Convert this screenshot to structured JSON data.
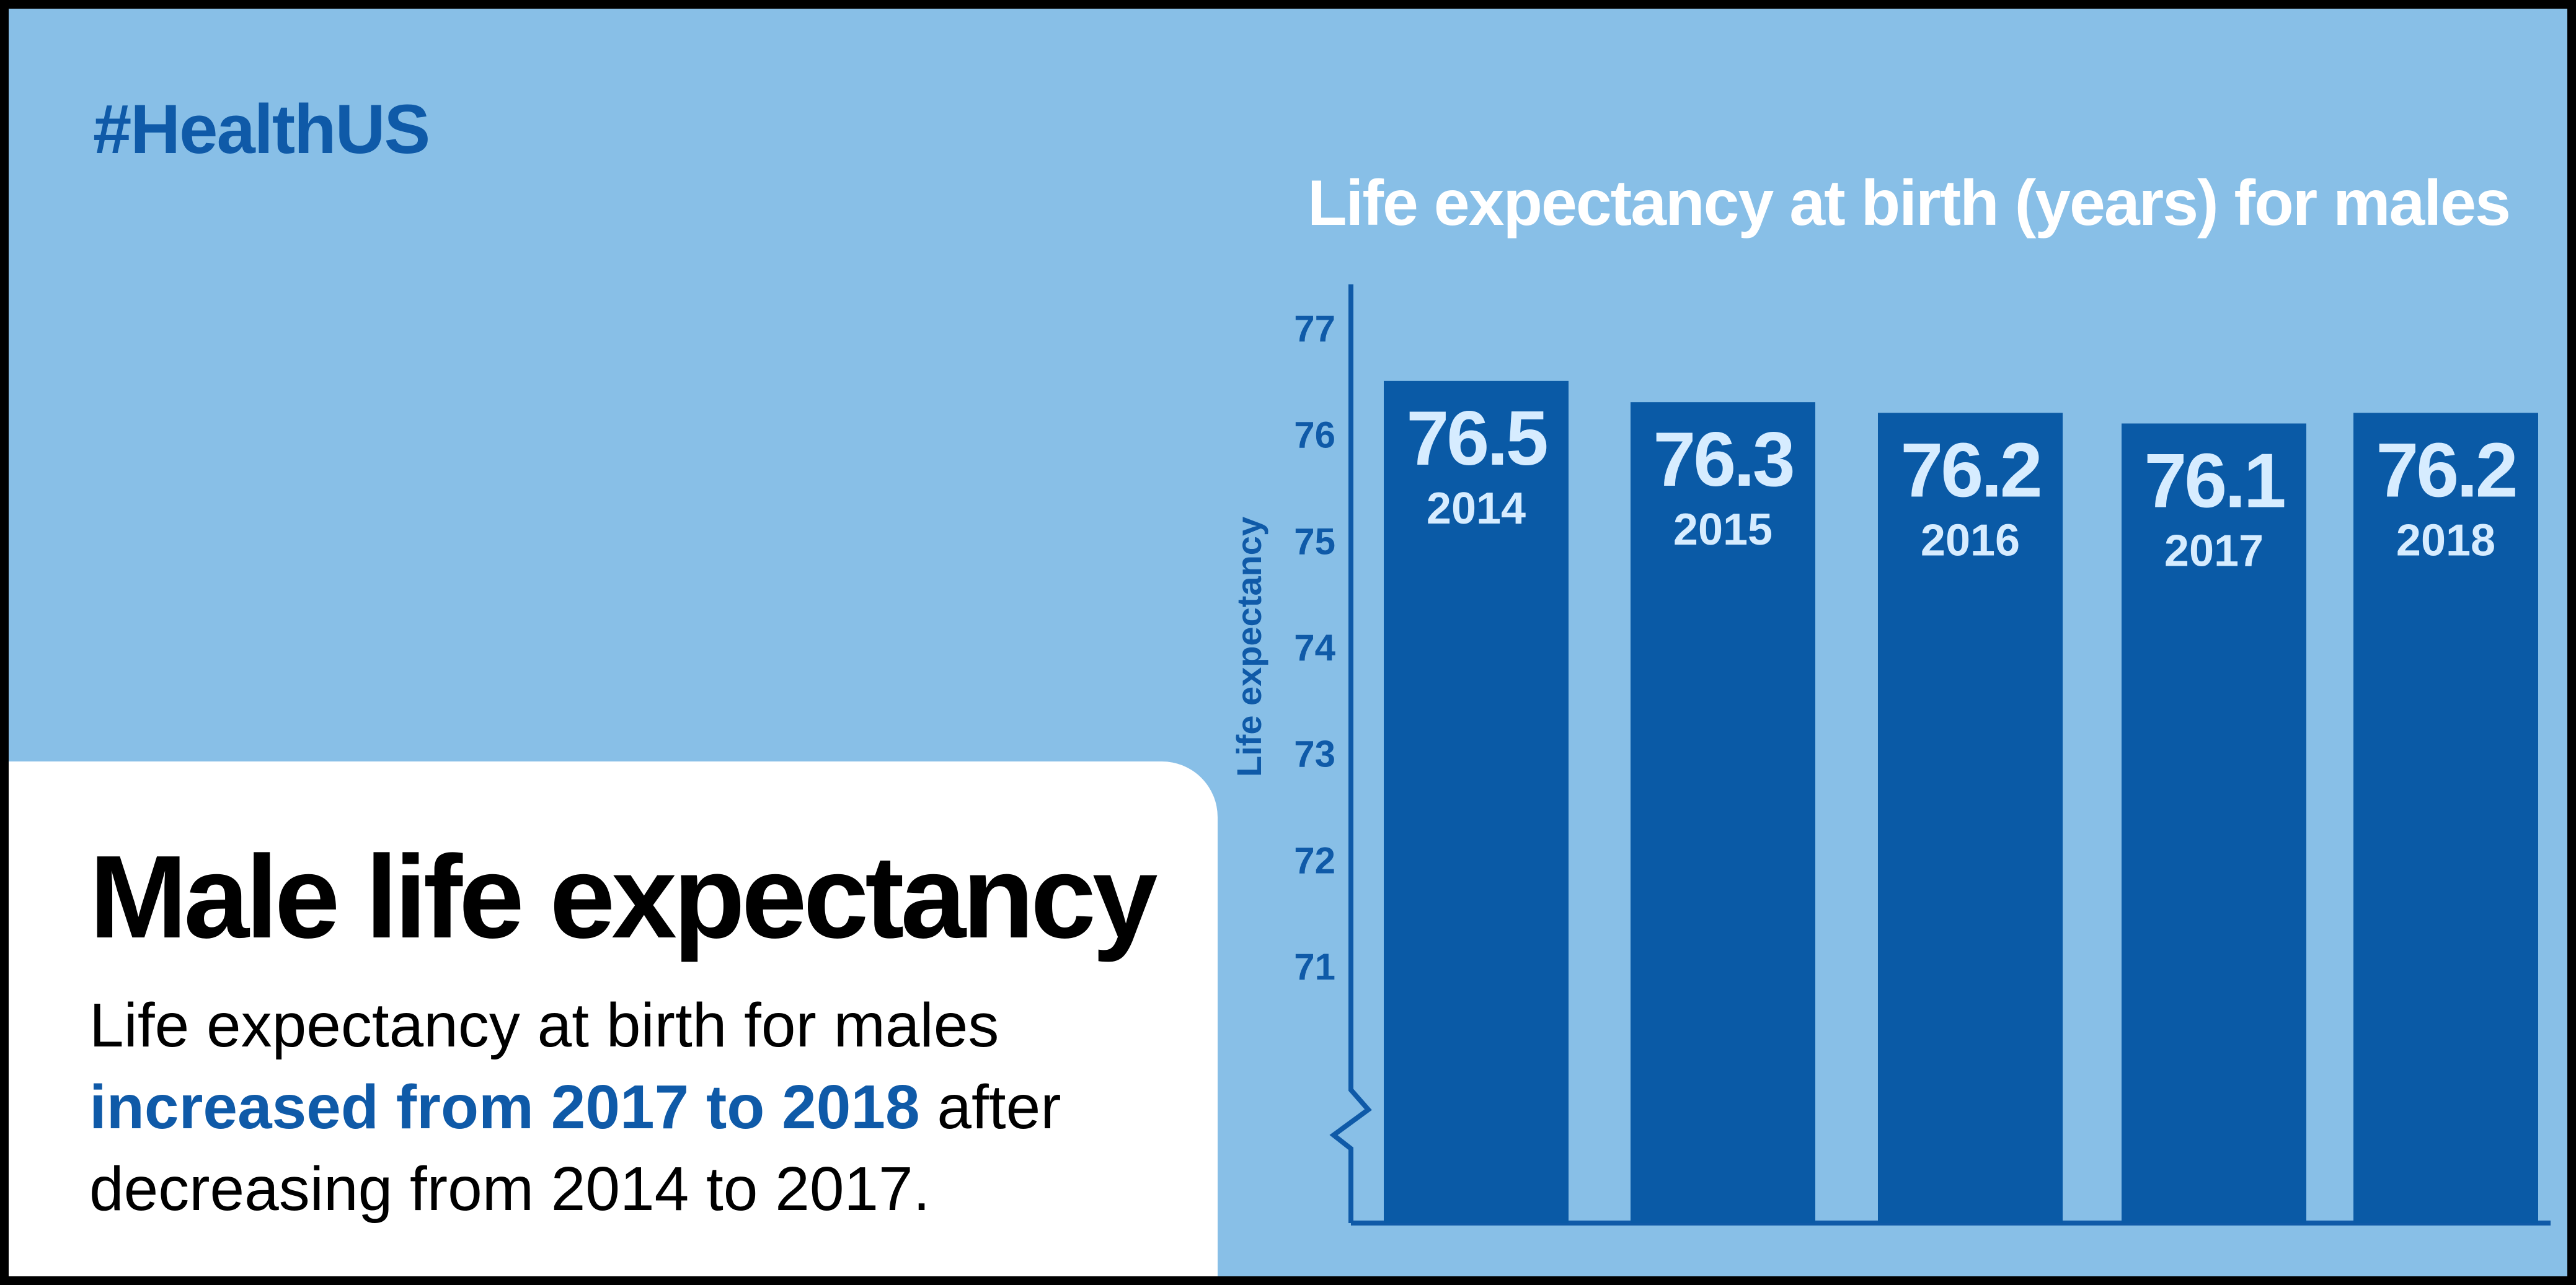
{
  "hashtag": "#HealthUS",
  "card": {
    "title": "Male life expectancy",
    "text_before": "Life expectancy at birth for males ",
    "text_highlight": "increased from 2017 to 2018",
    "text_after": " after decreasing from 2014 to 2017."
  },
  "colors": {
    "background": "#88bfe7",
    "bar": "#0a5aa6",
    "axis": "#0f5aa8",
    "bar_value_text": "#d6ecff",
    "title_text": "#ffffff",
    "highlight": "#0f5aa8"
  },
  "chart_data": {
    "type": "bar",
    "title": "Life expectancy at birth (years) for males",
    "xlabel": "",
    "ylabel": "Life expectancy",
    "categories": [
      "2014",
      "2015",
      "2016",
      "2017",
      "2018"
    ],
    "values": [
      76.5,
      76.3,
      76.2,
      76.1,
      76.2
    ],
    "value_labels": [
      "76.5",
      "76.3",
      "76.2",
      "76.1",
      "76.2"
    ],
    "yticks": [
      71,
      72,
      73,
      74,
      75,
      76,
      77
    ],
    "ylim": [
      70,
      77
    ],
    "axis_break": true,
    "grid": false,
    "legend": "none"
  }
}
